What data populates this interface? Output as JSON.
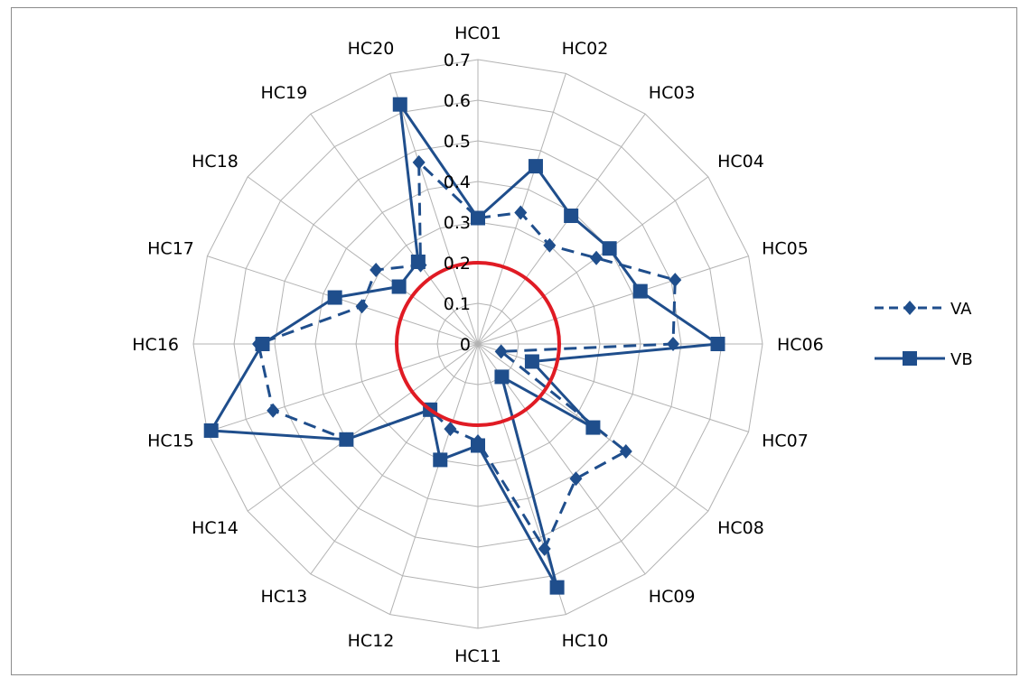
{
  "chart_data": {
    "type": "radar",
    "categories": [
      "HC01",
      "HC02",
      "HC03",
      "HC04",
      "HC05",
      "HC06",
      "HC07",
      "HC08",
      "HC09",
      "HC10",
      "HC11",
      "HC12",
      "HC13",
      "HC14",
      "HC15",
      "HC16",
      "HC17",
      "HC18",
      "HC19",
      "HC20"
    ],
    "radial_ticks": [
      "0",
      "0.1",
      "0.2",
      "0.3",
      "0.4",
      "0.5",
      "0.6",
      "0.7"
    ],
    "rlim": [
      0,
      0.7
    ],
    "series": [
      {
        "name": "VA",
        "style": "dashed",
        "marker": "diamond",
        "color": "#1f4e8c",
        "values": [
          0.31,
          0.34,
          0.3,
          0.36,
          0.51,
          0.48,
          0.06,
          0.45,
          0.41,
          0.53,
          0.24,
          0.22,
          0.2,
          0.4,
          0.53,
          0.54,
          0.3,
          0.31,
          0.24,
          0.47
        ]
      },
      {
        "name": "VB",
        "style": "solid",
        "marker": "square",
        "color": "#1f4e8c",
        "values": [
          0.31,
          0.46,
          0.39,
          0.4,
          0.42,
          0.59,
          0.14,
          0.35,
          0.1,
          0.63,
          0.25,
          0.3,
          0.2,
          0.4,
          0.69,
          0.53,
          0.37,
          0.24,
          0.25,
          0.62
        ]
      }
    ],
    "threshold_circle": {
      "value": 0.2,
      "color": "#e01b24"
    },
    "grid": true,
    "legend": "right",
    "axis_color": "#b3b3b3"
  }
}
